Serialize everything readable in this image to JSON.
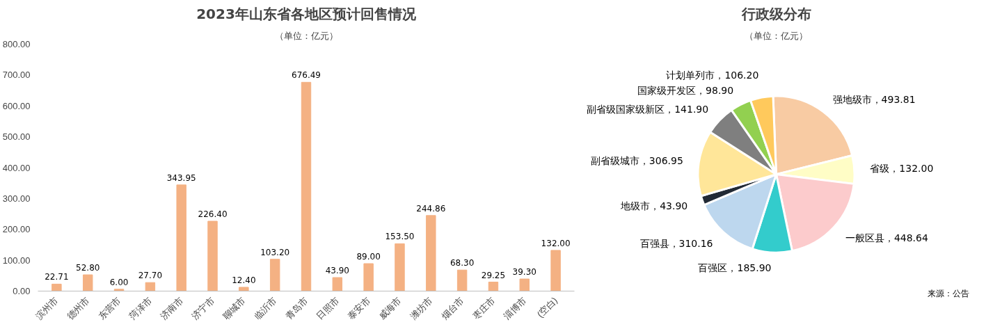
{
  "chart_data": [
    {
      "type": "bar",
      "title": "2023年山东省各地区预计回售情况",
      "subtitle": "（单位：亿元）",
      "categories": [
        "滨州市",
        "德州市",
        "东营市",
        "菏泽市",
        "济南市",
        "济宁市",
        "聊城市",
        "临沂市",
        "青岛市",
        "日照市",
        "泰安市",
        "威海市",
        "潍坊市",
        "烟台市",
        "枣庄市",
        "淄博市",
        "(空白)"
      ],
      "values": [
        22.71,
        52.8,
        6.0,
        27.7,
        343.95,
        226.4,
        12.4,
        103.2,
        676.49,
        43.9,
        89.0,
        153.5,
        244.86,
        68.3,
        29.25,
        39.3,
        132.0
      ],
      "value_labels": [
        "22.71",
        "52.80",
        "6.00",
        "27.70",
        "343.95",
        "226.40",
        "12.40",
        "103.20",
        "676.49",
        "43.90",
        "89.00",
        "153.50",
        "244.86",
        "68.30",
        "29.25",
        "39.30",
        "132.00"
      ],
      "color": "#f4b183",
      "ylim": [
        0,
        800
      ],
      "yticks": [
        {
          "value": 0,
          "label": "0.00"
        },
        {
          "value": 100,
          "label": "100.00"
        },
        {
          "value": 200,
          "label": "200.00"
        },
        {
          "value": 300,
          "label": "300.00"
        },
        {
          "value": 400,
          "label": "400.00"
        },
        {
          "value": 500,
          "label": "500.00"
        },
        {
          "value": 600,
          "label": "600.00"
        },
        {
          "value": 700,
          "label": "700.00"
        },
        {
          "value": 800,
          "label": "800.00"
        }
      ],
      "grid": false
    },
    {
      "type": "pie",
      "title": "行政级分布",
      "subtitle": "（单位：亿元）",
      "categories": [
        "强地级市",
        "省级",
        "一般区县",
        "百强区",
        "百强县",
        "地级市",
        "副省级城市",
        "副省级国家级新区",
        "国家级开发区",
        "计划单列市"
      ],
      "values": [
        493.81,
        132.0,
        448.64,
        185.9,
        310.16,
        43.9,
        306.95,
        141.9,
        98.9,
        106.2
      ],
      "value_labels": [
        "493.81",
        "132.00",
        "448.64",
        "185.90",
        "310.16",
        "43.90",
        "306.95",
        "141.90",
        "98.90",
        "106.20"
      ],
      "colors": [
        "#f8cba3",
        "#fffdc6",
        "#fccbcc",
        "#33cccc",
        "#bdd7ee",
        "#222a35",
        "#ffe699",
        "#7f7f7f",
        "#92d050",
        "#ffc95c"
      ],
      "annotations": [
        "来源：公告"
      ]
    }
  ]
}
